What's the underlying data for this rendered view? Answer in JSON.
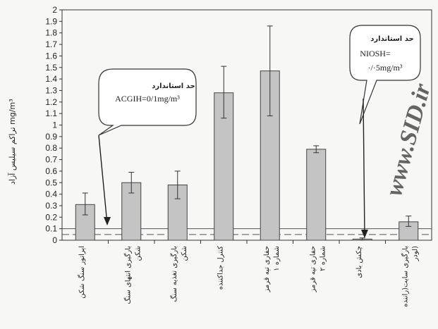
{
  "chart_data": {
    "type": "bar",
    "ylabel": "تراکم سیلیس آزاد mg/m³",
    "ylim": [
      0,
      2
    ],
    "yticks": [
      "0",
      "0.1",
      "0.2",
      "0.3",
      "0.4",
      "0.5",
      "0.6",
      "0.7",
      "0.8",
      "0.9",
      "1",
      "1.1",
      "1.2",
      "1.3",
      "1.4",
      "1.5",
      "1.6",
      "1.7",
      "1.8",
      "1.9",
      "2"
    ],
    "categories": [
      [
        "اپراتور سنگ شکن"
      ],
      [
        "بارگیری انتهای سنگ",
        "شکن"
      ],
      [
        "بارگیری تغذیه سنگ",
        "شکن"
      ],
      [
        "کنترل جداکننده"
      ],
      [
        "حفاری تپه قرمز",
        "شماره ۱"
      ],
      [
        "حفاری تپه قرمز",
        "شماره ۲"
      ],
      [
        "چکش بادی"
      ],
      [
        "بارگیری سایت(راننده",
        "لودر)"
      ]
    ],
    "values": [
      0.31,
      0.5,
      0.48,
      1.28,
      1.47,
      0.79,
      0.01,
      0.16
    ],
    "error_low": [
      0.22,
      0.41,
      0.36,
      1.06,
      1.08,
      0.76,
      0.0,
      0.12
    ],
    "error_high": [
      0.41,
      0.59,
      0.6,
      1.51,
      1.86,
      0.82,
      0.02,
      0.21
    ],
    "reference_lines": [
      {
        "value": 0.05,
        "style": "dashed"
      },
      {
        "value": 0.1,
        "style": "solid"
      }
    ],
    "callouts": [
      {
        "title": "حد استاندارد",
        "text": "ACGIH=0/1mg/m³"
      },
      {
        "title": "حد استاندارد",
        "text_line1": "NIOSH=",
        "text_line2": "·/·5mg/m³"
      }
    ],
    "watermark": "www.SID.ir",
    "colors": {
      "bar": "#c4c4c4",
      "bar_stroke": "#444444",
      "axis": "#333333"
    },
    "grid": false
  }
}
